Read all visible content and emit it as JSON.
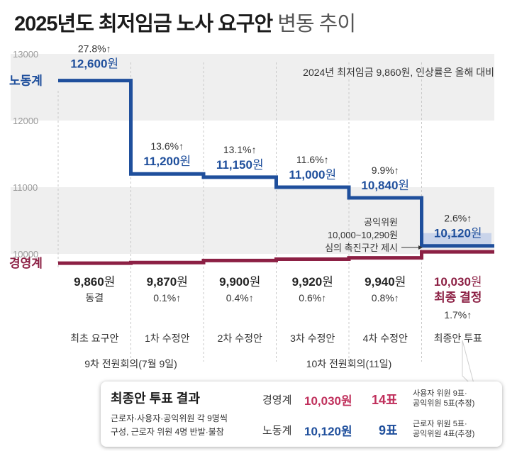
{
  "title": {
    "main": "2025년도 최저임금 노사 요구안",
    "sub": "변동 추이"
  },
  "note": "2024년 최저임금 9,860원, 인상률은 올해 대비",
  "annotation": [
    "공익위원",
    "10,000~10,290원",
    "심의 촉진구간 제시"
  ],
  "colors": {
    "labor": "#1f4f9c",
    "management": "#8c2044",
    "band": "#efefef"
  },
  "chart_data": {
    "type": "line",
    "step": true,
    "y_ticks": [
      "13000",
      "12000",
      "11000",
      "10000"
    ],
    "ylim": [
      10000,
      13000
    ],
    "categories": [
      "최초 요구안",
      "1차 수정안",
      "2차 수정안",
      "3차 수정안",
      "4차 수정안",
      "최종안 투표"
    ],
    "meetings": [
      {
        "label": "9차 전원회의(7월 9일)",
        "span": [
          0,
          1
        ]
      },
      {
        "label": "10차 전원회의(11일)",
        "span": [
          2,
          5
        ]
      }
    ],
    "series": [
      {
        "name": "노동계",
        "values": [
          12600,
          11200,
          11150,
          11000,
          10840,
          10120
        ],
        "value_labels": [
          "12,600",
          "11,200",
          "11,150",
          "11,000",
          "10,840",
          "10,120"
        ],
        "change_labels": [
          "27.8%↑",
          "13.6%↑",
          "13.1%↑",
          "11.6%↑",
          "9.9%↑",
          "2.6%↑"
        ]
      },
      {
        "name": "경영계",
        "values": [
          9860,
          9870,
          9900,
          9920,
          9940,
          10030
        ],
        "value_labels": [
          "9,860",
          "9,870",
          "9,900",
          "9,920",
          "9,940",
          "10,030"
        ],
        "change_labels": [
          "동결",
          "0.1%↑",
          "0.4%↑",
          "0.6%↑",
          "0.8%↑",
          "1.7%↑"
        ]
      }
    ],
    "unit": "원",
    "final_label": "최종 결정"
  },
  "result": {
    "title": "최종안 투표 결과",
    "desc": [
      "근로자·사용자·공익위원 각 9명씩",
      "구성, 근로자 위원 4명 반발·불참"
    ],
    "rows": [
      {
        "label": "경영계",
        "value": "10,030원",
        "votes": "14표",
        "note": [
          "사용자 위원 9표·",
          "공익위원 5표(추정)"
        ]
      },
      {
        "label": "노동계",
        "value": "10,120원",
        "votes": "9표",
        "note": [
          "근로자 위원 5표·",
          "공익위원 4표(추정)"
        ]
      }
    ]
  }
}
